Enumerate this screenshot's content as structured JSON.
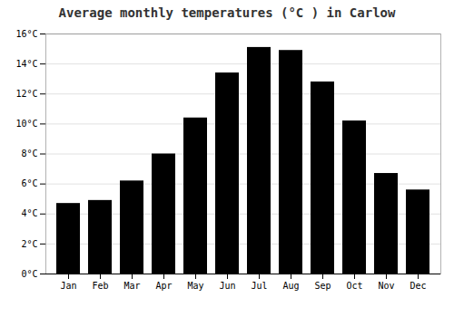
{
  "chart_data": {
    "type": "bar",
    "title": "Average monthly temperatures (°C ) in Carlow",
    "categories": [
      "Jan",
      "Feb",
      "Mar",
      "Apr",
      "May",
      "Jun",
      "Jul",
      "Aug",
      "Sep",
      "Oct",
      "Nov",
      "Dec"
    ],
    "values": [
      4.7,
      4.9,
      6.2,
      8.0,
      10.4,
      13.4,
      15.1,
      14.9,
      12.8,
      10.2,
      6.7,
      5.6
    ],
    "ylim": [
      0,
      16
    ],
    "yticks": [
      {
        "value": 0,
        "label": "0°C"
      },
      {
        "value": 2,
        "label": "2°C"
      },
      {
        "value": 4,
        "label": "4°C"
      },
      {
        "value": 6,
        "label": "6°C"
      },
      {
        "value": 8,
        "label": "8°C"
      },
      {
        "value": 10,
        "label": "10°C"
      },
      {
        "value": 12,
        "label": "12°C"
      },
      {
        "value": 14,
        "label": "14°C"
      },
      {
        "value": 16,
        "label": "16°C"
      }
    ],
    "grid": true
  }
}
